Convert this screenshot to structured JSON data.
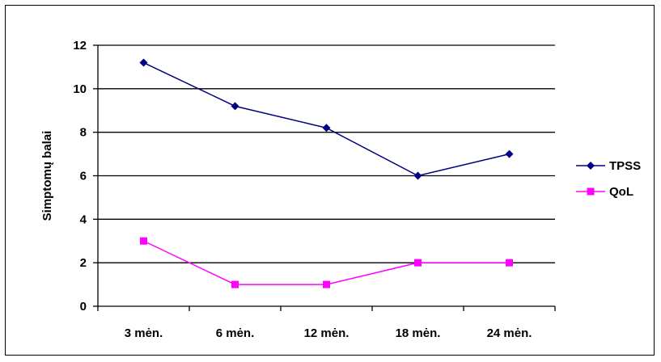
{
  "chart_data": {
    "type": "line",
    "title": "",
    "xlabel": "",
    "ylabel": "Simptomų balai",
    "categories": [
      "3 mėn.",
      "6 mėn.",
      "12 mėn.",
      "18 mėn.",
      "24 mėn."
    ],
    "ylim": [
      0,
      12
    ],
    "yticks": [
      0,
      2,
      4,
      6,
      8,
      10,
      12
    ],
    "grid": "horizontal",
    "legend_position": "right",
    "series": [
      {
        "name": "TPSS",
        "values": [
          11.2,
          9.2,
          8.2,
          6.0,
          7.0
        ],
        "color": "#000080",
        "marker": "diamond"
      },
      {
        "name": "QoL",
        "values": [
          3,
          1,
          1,
          2,
          2
        ],
        "color": "#ff00ff",
        "marker": "square"
      }
    ]
  }
}
